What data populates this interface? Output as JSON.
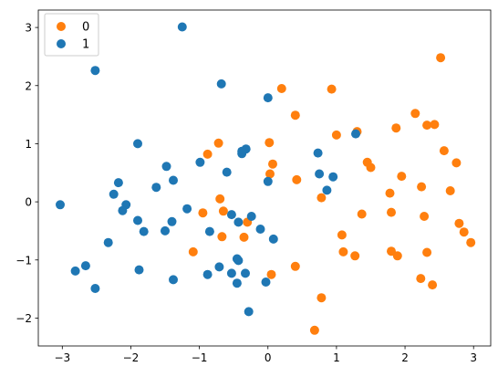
{
  "chart_data": {
    "type": "scatter",
    "title": "",
    "xlabel": "",
    "ylabel": "",
    "xlim": [
      -3.35,
      3.25
    ],
    "ylim": [
      -2.48,
      3.3
    ],
    "xticks": [
      -3,
      -2,
      -1,
      0,
      1,
      2,
      3
    ],
    "yticks": [
      -2,
      -1,
      0,
      1,
      2,
      3
    ],
    "grid": false,
    "legend_position": "top-left",
    "series": [
      {
        "name": "0",
        "color": "#ff7f0e",
        "points": [
          [
            0.2,
            1.95
          ],
          [
            0.4,
            1.49
          ],
          [
            0.93,
            1.94
          ],
          [
            2.52,
            2.48
          ],
          [
            0.02,
            1.02
          ],
          [
            -0.72,
            1.01
          ],
          [
            -0.88,
            0.82
          ],
          [
            0.07,
            0.65
          ],
          [
            0.03,
            0.48
          ],
          [
            0.42,
            0.38
          ],
          [
            -0.7,
            0.05
          ],
          [
            -0.65,
            -0.16
          ],
          [
            -0.95,
            -0.19
          ],
          [
            -0.3,
            -0.35
          ],
          [
            -0.67,
            -0.6
          ],
          [
            -0.35,
            -0.61
          ],
          [
            -1.09,
            -0.86
          ],
          [
            0.4,
            -1.11
          ],
          [
            0.05,
            -1.25
          ],
          [
            0.78,
            -1.65
          ],
          [
            0.68,
            -2.21
          ],
          [
            1.0,
            1.15
          ],
          [
            1.3,
            1.21
          ],
          [
            1.87,
            1.27
          ],
          [
            2.15,
            1.52
          ],
          [
            2.32,
            1.32
          ],
          [
            2.43,
            1.33
          ],
          [
            2.57,
            0.88
          ],
          [
            2.75,
            0.67
          ],
          [
            1.45,
            0.68
          ],
          [
            1.5,
            0.59
          ],
          [
            1.95,
            0.44
          ],
          [
            2.66,
            0.19
          ],
          [
            1.78,
            0.15
          ],
          [
            2.24,
            0.26
          ],
          [
            0.78,
            0.07
          ],
          [
            1.37,
            -0.21
          ],
          [
            1.8,
            -0.18
          ],
          [
            2.28,
            -0.25
          ],
          [
            2.79,
            -0.37
          ],
          [
            2.86,
            -0.52
          ],
          [
            2.96,
            -0.7
          ],
          [
            1.08,
            -0.57
          ],
          [
            1.8,
            -0.85
          ],
          [
            1.1,
            -0.86
          ],
          [
            1.27,
            -0.93
          ],
          [
            1.89,
            -0.93
          ],
          [
            2.32,
            -0.87
          ],
          [
            2.23,
            -1.32
          ],
          [
            2.4,
            -1.43
          ]
        ]
      },
      {
        "name": "1",
        "color": "#1f77b4",
        "points": [
          [
            -1.25,
            3.01
          ],
          [
            -2.52,
            2.26
          ],
          [
            -0.68,
            2.03
          ],
          [
            0.0,
            1.79
          ],
          [
            -1.9,
            1.0
          ],
          [
            -0.32,
            0.91
          ],
          [
            -0.38,
            0.83
          ],
          [
            -0.99,
            0.68
          ],
          [
            -1.48,
            0.61
          ],
          [
            -0.6,
            0.51
          ],
          [
            -1.38,
            0.37
          ],
          [
            -2.18,
            0.33
          ],
          [
            -1.63,
            0.25
          ],
          [
            -2.25,
            0.13
          ],
          [
            -3.03,
            -0.05
          ],
          [
            -2.07,
            -0.05
          ],
          [
            -2.12,
            -0.15
          ],
          [
            -1.18,
            -0.12
          ],
          [
            -0.53,
            -0.22
          ],
          [
            -0.24,
            -0.25
          ],
          [
            -1.4,
            -0.34
          ],
          [
            -1.9,
            -0.32
          ],
          [
            -0.43,
            -0.35
          ],
          [
            -1.5,
            -0.5
          ],
          [
            -1.81,
            -0.51
          ],
          [
            -0.85,
            -0.51
          ],
          [
            -0.11,
            -0.47
          ],
          [
            0.08,
            -0.64
          ],
          [
            -2.33,
            -0.7
          ],
          [
            -0.45,
            -0.98
          ],
          [
            -0.43,
            -1.01
          ],
          [
            -0.71,
            -1.12
          ],
          [
            -2.81,
            -1.19
          ],
          [
            -2.66,
            -1.1
          ],
          [
            -1.88,
            -1.17
          ],
          [
            -0.53,
            -1.23
          ],
          [
            -0.33,
            -1.23
          ],
          [
            -0.88,
            -1.25
          ],
          [
            -1.38,
            -1.34
          ],
          [
            -0.45,
            -1.4
          ],
          [
            -0.03,
            -1.38
          ],
          [
            -2.52,
            -1.49
          ],
          [
            -0.28,
            -1.89
          ],
          [
            1.28,
            1.17
          ],
          [
            0.73,
            0.84
          ],
          [
            0.75,
            0.48
          ],
          [
            0.0,
            0.35
          ],
          [
            0.95,
            0.43
          ],
          [
            0.86,
            0.2
          ],
          [
            -0.38,
            0.87
          ]
        ]
      }
    ]
  }
}
